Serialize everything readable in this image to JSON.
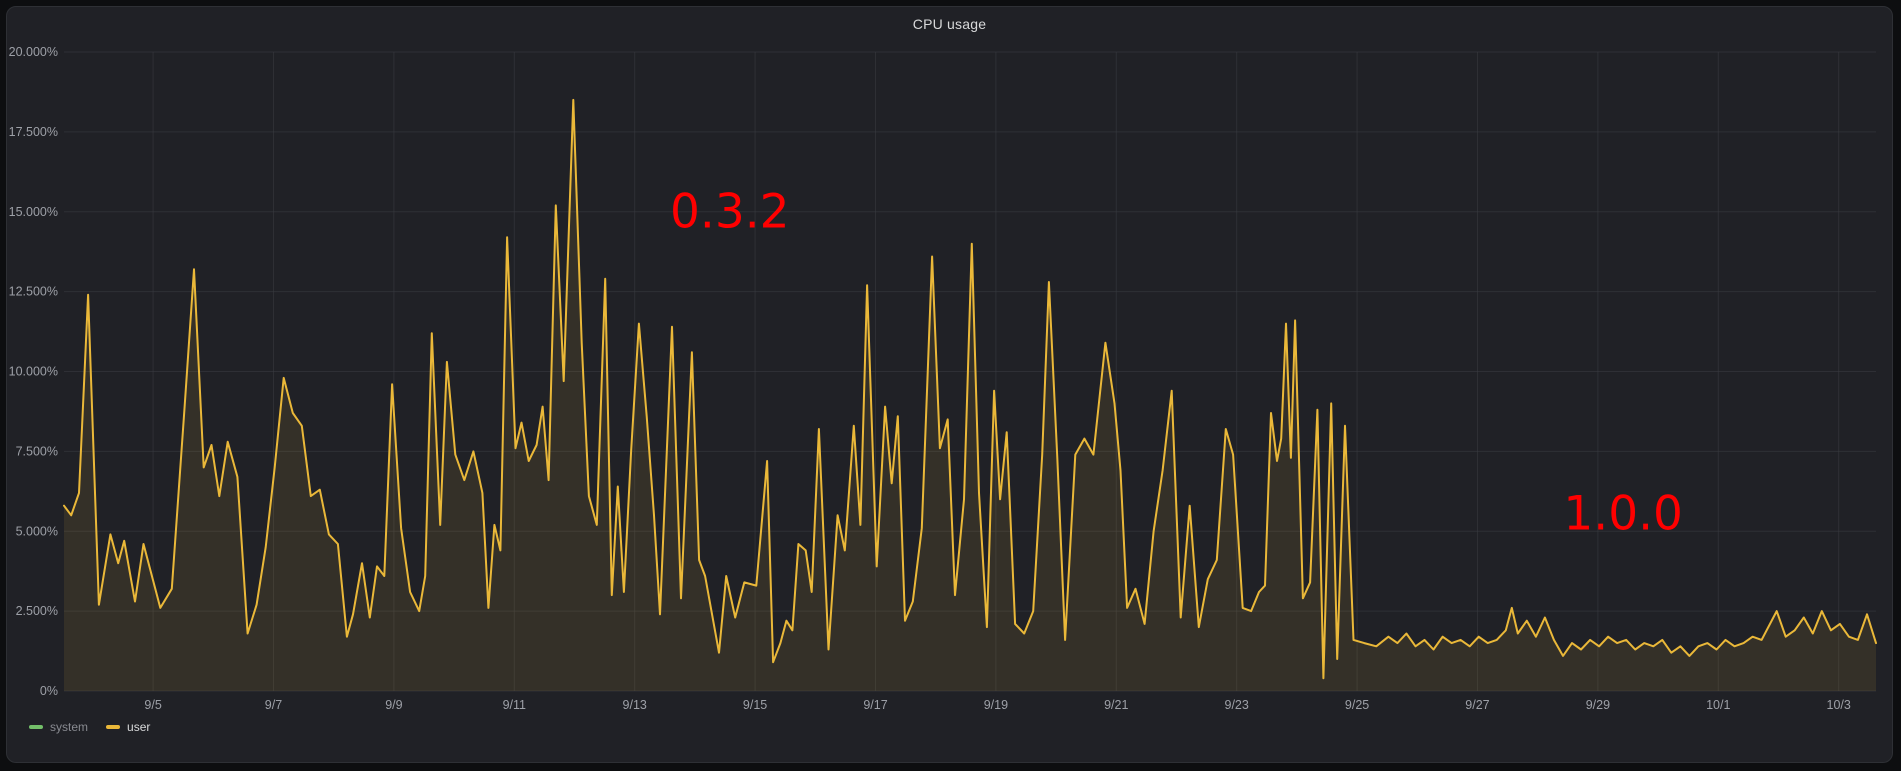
{
  "panel": {
    "title": "CPU usage"
  },
  "chart_data": {
    "type": "line",
    "title": "CPU usage",
    "xlabel": "",
    "ylabel": "",
    "ylim": [
      0,
      20
    ],
    "y_unit": "percent",
    "x_range_days": [
      0,
      30.1
    ],
    "grid": true,
    "legend_position": "bottom-left",
    "colors": {
      "background": "#202126",
      "grid": "#3a3c42",
      "tick_text": "#9da0a7",
      "title_text": "#d8d9da",
      "annotation_red": "#ff0000",
      "user_line": "#EAB839",
      "system_green": "#73BF69"
    },
    "y_ticks": [
      {
        "value": 0,
        "label": "0%"
      },
      {
        "value": 2.5,
        "label": "2.500%"
      },
      {
        "value": 5,
        "label": "5.000%"
      },
      {
        "value": 7.5,
        "label": "7.500%"
      },
      {
        "value": 10,
        "label": "10.000%"
      },
      {
        "value": 12.5,
        "label": "12.500%"
      },
      {
        "value": 15,
        "label": "15.000%"
      },
      {
        "value": 17.5,
        "label": "17.500%"
      },
      {
        "value": 20,
        "label": "20.000%"
      }
    ],
    "x_ticks": [
      {
        "t": 1.48,
        "label": "9/5"
      },
      {
        "t": 3.48,
        "label": "9/7"
      },
      {
        "t": 5.48,
        "label": "9/9"
      },
      {
        "t": 7.48,
        "label": "9/11"
      },
      {
        "t": 9.48,
        "label": "9/13"
      },
      {
        "t": 11.48,
        "label": "9/15"
      },
      {
        "t": 13.48,
        "label": "9/17"
      },
      {
        "t": 15.48,
        "label": "9/19"
      },
      {
        "t": 17.48,
        "label": "9/21"
      },
      {
        "t": 19.48,
        "label": "9/23"
      },
      {
        "t": 21.48,
        "label": "9/25"
      },
      {
        "t": 23.48,
        "label": "9/27"
      },
      {
        "t": 25.48,
        "label": "9/29"
      },
      {
        "t": 27.48,
        "label": "10/1"
      },
      {
        "t": 29.48,
        "label": "10/3"
      }
    ],
    "annotations": [
      {
        "text": "0.3.2",
        "color": "#ff0000",
        "t": 11.06,
        "value": 15.0
      },
      {
        "text": "1.0.0",
        "color": "#ff0000",
        "t": 25.9,
        "value": 5.55
      }
    ],
    "series": [
      {
        "name": "system",
        "color": "#73BF69",
        "visible": false,
        "legend_dimmed": true,
        "points": []
      },
      {
        "name": "user",
        "color": "#EAB839",
        "visible": true,
        "legend_dimmed": false,
        "fill_opacity": 0.1,
        "points": [
          [
            0.0,
            5.8
          ],
          [
            0.12,
            5.5
          ],
          [
            0.25,
            6.2
          ],
          [
            0.4,
            12.4
          ],
          [
            0.58,
            2.7
          ],
          [
            0.77,
            4.9
          ],
          [
            0.9,
            4.0
          ],
          [
            1.0,
            4.7
          ],
          [
            1.18,
            2.8
          ],
          [
            1.32,
            4.6
          ],
          [
            1.6,
            2.6
          ],
          [
            1.79,
            3.2
          ],
          [
            2.0,
            8.8
          ],
          [
            2.16,
            13.2
          ],
          [
            2.32,
            7.0
          ],
          [
            2.45,
            7.7
          ],
          [
            2.58,
            6.1
          ],
          [
            2.72,
            7.8
          ],
          [
            2.88,
            6.7
          ],
          [
            3.05,
            1.8
          ],
          [
            3.2,
            2.7
          ],
          [
            3.35,
            4.5
          ],
          [
            3.5,
            7.0
          ],
          [
            3.65,
            9.8
          ],
          [
            3.8,
            8.7
          ],
          [
            3.95,
            8.3
          ],
          [
            4.1,
            6.1
          ],
          [
            4.25,
            6.3
          ],
          [
            4.4,
            4.9
          ],
          [
            4.55,
            4.6
          ],
          [
            4.7,
            1.7
          ],
          [
            4.8,
            2.4
          ],
          [
            4.95,
            4.0
          ],
          [
            5.08,
            2.3
          ],
          [
            5.2,
            3.9
          ],
          [
            5.32,
            3.6
          ],
          [
            5.45,
            9.6
          ],
          [
            5.6,
            5.1
          ],
          [
            5.75,
            3.1
          ],
          [
            5.9,
            2.5
          ],
          [
            6.0,
            3.6
          ],
          [
            6.11,
            11.2
          ],
          [
            6.25,
            5.2
          ],
          [
            6.36,
            10.3
          ],
          [
            6.5,
            7.4
          ],
          [
            6.65,
            6.6
          ],
          [
            6.8,
            7.5
          ],
          [
            6.95,
            6.2
          ],
          [
            7.05,
            2.6
          ],
          [
            7.15,
            5.2
          ],
          [
            7.25,
            4.4
          ],
          [
            7.36,
            14.2
          ],
          [
            7.5,
            7.6
          ],
          [
            7.6,
            8.4
          ],
          [
            7.72,
            7.2
          ],
          [
            7.85,
            7.7
          ],
          [
            7.95,
            8.9
          ],
          [
            8.05,
            6.6
          ],
          [
            8.17,
            15.2
          ],
          [
            8.3,
            9.7
          ],
          [
            8.46,
            18.5
          ],
          [
            8.6,
            10.9
          ],
          [
            8.72,
            6.1
          ],
          [
            8.85,
            5.2
          ],
          [
            8.99,
            12.9
          ],
          [
            9.1,
            3.0
          ],
          [
            9.2,
            6.4
          ],
          [
            9.3,
            3.1
          ],
          [
            9.42,
            7.5
          ],
          [
            9.55,
            11.5
          ],
          [
            9.68,
            8.6
          ],
          [
            9.8,
            5.5
          ],
          [
            9.9,
            2.4
          ],
          [
            10.1,
            11.4
          ],
          [
            10.25,
            2.9
          ],
          [
            10.43,
            10.6
          ],
          [
            10.55,
            4.1
          ],
          [
            10.65,
            3.6
          ],
          [
            10.88,
            1.2
          ],
          [
            11.0,
            3.6
          ],
          [
            11.15,
            2.3
          ],
          [
            11.3,
            3.4
          ],
          [
            11.5,
            3.3
          ],
          [
            11.68,
            7.2
          ],
          [
            11.78,
            0.9
          ],
          [
            11.9,
            1.5
          ],
          [
            12.0,
            2.2
          ],
          [
            12.1,
            1.9
          ],
          [
            12.2,
            4.6
          ],
          [
            12.32,
            4.4
          ],
          [
            12.42,
            3.1
          ],
          [
            12.54,
            8.2
          ],
          [
            12.7,
            1.3
          ],
          [
            12.85,
            5.5
          ],
          [
            12.97,
            4.4
          ],
          [
            13.12,
            8.3
          ],
          [
            13.23,
            5.2
          ],
          [
            13.34,
            12.7
          ],
          [
            13.5,
            3.9
          ],
          [
            13.64,
            8.9
          ],
          [
            13.75,
            6.5
          ],
          [
            13.85,
            8.6
          ],
          [
            13.97,
            2.2
          ],
          [
            14.1,
            2.8
          ],
          [
            14.25,
            5.1
          ],
          [
            14.42,
            13.6
          ],
          [
            14.55,
            7.6
          ],
          [
            14.68,
            8.5
          ],
          [
            14.8,
            3.0
          ],
          [
            14.95,
            6.0
          ],
          [
            15.08,
            14.0
          ],
          [
            15.2,
            6.2
          ],
          [
            15.33,
            2.0
          ],
          [
            15.45,
            9.4
          ],
          [
            15.55,
            6.0
          ],
          [
            15.66,
            8.1
          ],
          [
            15.8,
            2.1
          ],
          [
            15.95,
            1.8
          ],
          [
            16.1,
            2.5
          ],
          [
            16.25,
            7.4
          ],
          [
            16.36,
            12.8
          ],
          [
            16.5,
            7.3
          ],
          [
            16.63,
            1.6
          ],
          [
            16.8,
            7.4
          ],
          [
            16.95,
            7.9
          ],
          [
            17.1,
            7.4
          ],
          [
            17.3,
            10.9
          ],
          [
            17.45,
            9.0
          ],
          [
            17.55,
            6.9
          ],
          [
            17.66,
            2.6
          ],
          [
            17.8,
            3.2
          ],
          [
            17.95,
            2.1
          ],
          [
            18.1,
            5.0
          ],
          [
            18.25,
            6.9
          ],
          [
            18.4,
            9.4
          ],
          [
            18.55,
            2.3
          ],
          [
            18.7,
            5.8
          ],
          [
            18.85,
            2.0
          ],
          [
            19.0,
            3.5
          ],
          [
            19.15,
            4.1
          ],
          [
            19.3,
            8.2
          ],
          [
            19.42,
            7.4
          ],
          [
            19.58,
            2.6
          ],
          [
            19.72,
            2.5
          ],
          [
            19.85,
            3.1
          ],
          [
            19.95,
            3.3
          ],
          [
            20.05,
            8.7
          ],
          [
            20.15,
            7.2
          ],
          [
            20.22,
            7.9
          ],
          [
            20.3,
            11.5
          ],
          [
            20.38,
            7.3
          ],
          [
            20.45,
            11.6
          ],
          [
            20.58,
            2.9
          ],
          [
            20.7,
            3.4
          ],
          [
            20.82,
            8.8
          ],
          [
            20.92,
            0.4
          ],
          [
            21.05,
            9.0
          ],
          [
            21.15,
            1.0
          ],
          [
            21.28,
            8.3
          ],
          [
            21.42,
            1.6
          ],
          [
            21.6,
            1.5
          ],
          [
            21.8,
            1.4
          ],
          [
            22.0,
            1.7
          ],
          [
            22.15,
            1.5
          ],
          [
            22.3,
            1.8
          ],
          [
            22.45,
            1.4
          ],
          [
            22.6,
            1.6
          ],
          [
            22.75,
            1.3
          ],
          [
            22.9,
            1.7
          ],
          [
            23.05,
            1.5
          ],
          [
            23.2,
            1.6
          ],
          [
            23.35,
            1.4
          ],
          [
            23.5,
            1.7
          ],
          [
            23.65,
            1.5
          ],
          [
            23.8,
            1.6
          ],
          [
            23.95,
            1.9
          ],
          [
            24.05,
            2.6
          ],
          [
            24.15,
            1.8
          ],
          [
            24.3,
            2.2
          ],
          [
            24.45,
            1.7
          ],
          [
            24.6,
            2.3
          ],
          [
            24.75,
            1.6
          ],
          [
            24.9,
            1.1
          ],
          [
            25.05,
            1.5
          ],
          [
            25.2,
            1.3
          ],
          [
            25.35,
            1.6
          ],
          [
            25.5,
            1.4
          ],
          [
            25.65,
            1.7
          ],
          [
            25.8,
            1.5
          ],
          [
            25.95,
            1.6
          ],
          [
            26.1,
            1.3
          ],
          [
            26.25,
            1.5
          ],
          [
            26.4,
            1.4
          ],
          [
            26.55,
            1.6
          ],
          [
            26.7,
            1.2
          ],
          [
            26.85,
            1.4
          ],
          [
            27.0,
            1.1
          ],
          [
            27.15,
            1.4
          ],
          [
            27.3,
            1.5
          ],
          [
            27.45,
            1.3
          ],
          [
            27.6,
            1.6
          ],
          [
            27.75,
            1.4
          ],
          [
            27.9,
            1.5
          ],
          [
            28.05,
            1.7
          ],
          [
            28.2,
            1.6
          ],
          [
            28.45,
            2.5
          ],
          [
            28.6,
            1.7
          ],
          [
            28.75,
            1.9
          ],
          [
            28.9,
            2.3
          ],
          [
            29.05,
            1.8
          ],
          [
            29.2,
            2.5
          ],
          [
            29.35,
            1.9
          ],
          [
            29.5,
            2.1
          ],
          [
            29.65,
            1.7
          ],
          [
            29.8,
            1.6
          ],
          [
            29.95,
            2.4
          ],
          [
            30.1,
            1.5
          ]
        ]
      }
    ]
  }
}
